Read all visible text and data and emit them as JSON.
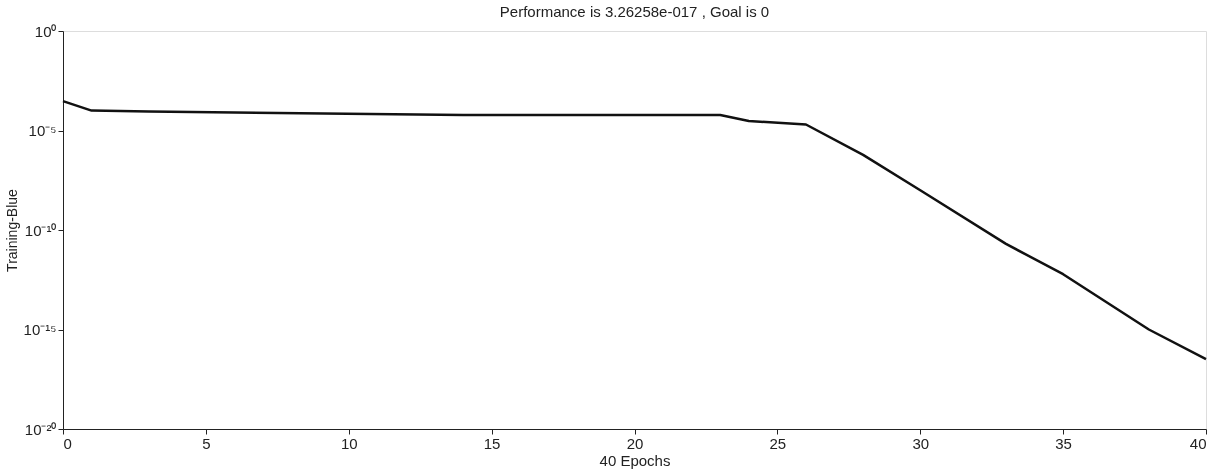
{
  "chart_data": {
    "type": "line",
    "title": "Performance is 3.26258e-017 , Goal is 0",
    "xlabel": "40 Epochs",
    "ylabel": "Training-Blue",
    "log": "y",
    "grid": false,
    "marker": "none",
    "line_style": "solid",
    "xlim": [
      0,
      40
    ],
    "xticks": [
      0,
      5,
      10,
      15,
      20,
      25,
      30,
      35,
      40
    ],
    "ylim": [
      1e-20,
      1
    ],
    "yticks": [
      {
        "value": 1,
        "label": "10⁰"
      },
      {
        "value": 1e-05,
        "label": "10⁻⁵"
      },
      {
        "value": 1e-10,
        "label": "10⁻¹⁰"
      },
      {
        "value": 1e-15,
        "label": "10⁻¹⁵"
      },
      {
        "value": 1e-20,
        "label": "10⁻²⁰"
      }
    ],
    "x": [
      0,
      1,
      3,
      14,
      23,
      24,
      26,
      28,
      30,
      33,
      35,
      38,
      40
    ],
    "series": [
      {
        "color": "#111111",
        "values": [
          0.0003,
          0.0001,
          9e-05,
          6e-05,
          6e-05,
          3e-05,
          2e-05,
          6e-07,
          1e-08,
          2e-11,
          6e-13,
          1e-15,
          3.26258e-17
        ]
      }
    ]
  }
}
